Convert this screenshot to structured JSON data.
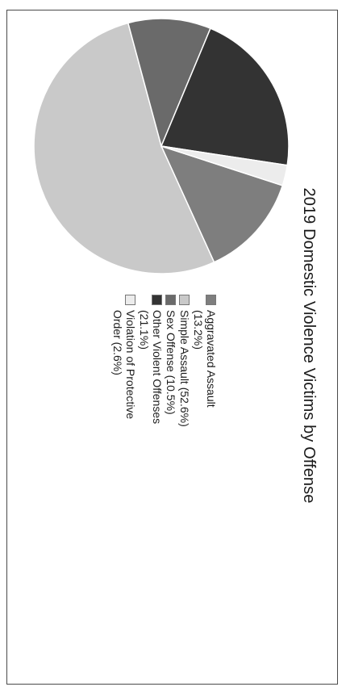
{
  "chart_data": {
    "type": "pie",
    "title": "2019 Domestic Violence Victims by Offense",
    "legend_position": "right",
    "slices": [
      {
        "label": "Aggravated Assault (13.2%)",
        "value": 13.2,
        "color": "#7e7e7e"
      },
      {
        "label": "Simple Assault (52.6%)",
        "value": 52.6,
        "color": "#c9c9c9"
      },
      {
        "label": "Sex Offense (10.5%)",
        "value": 10.5,
        "color": "#6a6a6a"
      },
      {
        "label": "Other Violent Offenses (21.1%)",
        "value": 21.1,
        "color": "#333333"
      },
      {
        "label": "Violation of Protective Order (2.6%)",
        "value": 2.6,
        "color": "#ececec"
      }
    ]
  }
}
